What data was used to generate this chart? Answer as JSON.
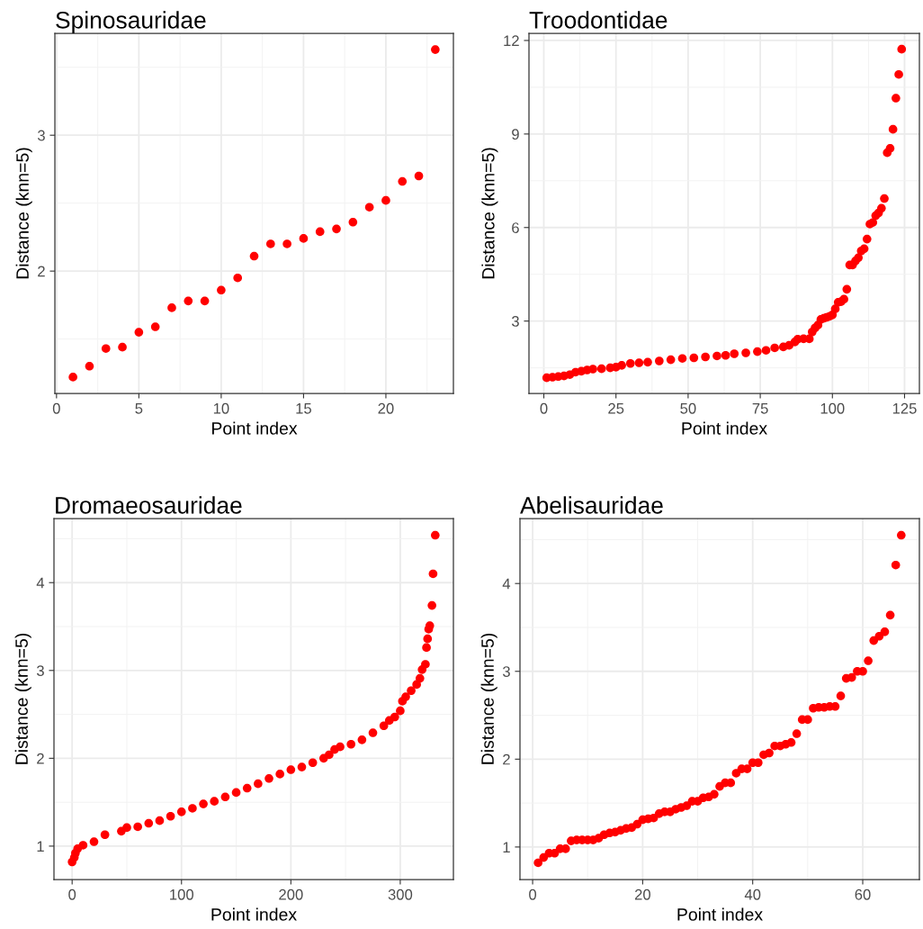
{
  "chart_data": [
    {
      "type": "scatter",
      "title": "Spinosauridae",
      "xlabel": "Point index",
      "ylabel": "Distance (knn=5)",
      "marker": "circle",
      "grid": true,
      "xlim": [
        -0.1,
        24.1
      ],
      "ylim": [
        1.1,
        3.75
      ],
      "xticks": [
        0,
        5,
        10,
        15,
        20
      ],
      "yticks": [
        2,
        3
      ],
      "x": [
        1,
        2,
        3,
        4,
        5,
        6,
        7,
        8,
        9,
        10,
        11,
        12,
        13,
        14,
        15,
        16,
        17,
        18,
        19,
        20,
        21,
        22,
        23
      ],
      "series": [
        {
          "color": "#ff0000",
          "values": [
            1.22,
            1.3,
            1.43,
            1.44,
            1.55,
            1.59,
            1.73,
            1.78,
            1.78,
            1.86,
            1.95,
            2.11,
            2.2,
            2.2,
            2.24,
            2.29,
            2.31,
            2.36,
            2.47,
            2.52,
            2.66,
            2.7,
            3.63
          ]
        }
      ]
    },
    {
      "type": "scatter",
      "title": "Troodontidae",
      "xlabel": "Point index",
      "ylabel": "Distance (knn=5)",
      "marker": "circle",
      "grid": true,
      "xlim": [
        -5.15,
        130.15
      ],
      "ylim": [
        0.68,
        12.23
      ],
      "xticks": [
        0,
        25,
        50,
        75,
        100,
        125
      ],
      "yticks": [
        3,
        6,
        9,
        12
      ],
      "x": [
        1,
        3,
        5,
        7,
        9,
        11,
        13,
        15,
        17,
        20,
        23,
        25,
        27,
        30,
        33,
        36,
        40,
        44,
        48,
        52,
        56,
        60,
        63,
        66,
        70,
        74,
        77,
        80,
        83,
        85,
        87,
        88,
        90,
        92,
        93,
        94,
        95,
        96,
        97,
        98,
        99,
        100,
        101,
        102,
        103,
        104,
        105,
        106,
        107,
        108,
        109,
        110,
        111,
        112,
        113,
        114,
        115,
        116,
        117,
        118,
        119,
        120,
        121,
        122,
        123,
        124
      ],
      "series": [
        {
          "color": "#ff0000",
          "values": [
            1.18,
            1.2,
            1.22,
            1.24,
            1.28,
            1.36,
            1.39,
            1.43,
            1.46,
            1.47,
            1.5,
            1.52,
            1.58,
            1.64,
            1.66,
            1.68,
            1.72,
            1.76,
            1.8,
            1.82,
            1.85,
            1.88,
            1.9,
            1.95,
            1.98,
            2.02,
            2.06,
            2.14,
            2.17,
            2.22,
            2.33,
            2.42,
            2.43,
            2.43,
            2.65,
            2.78,
            2.87,
            3.05,
            3.09,
            3.12,
            3.15,
            3.2,
            3.39,
            3.6,
            3.62,
            3.7,
            4.02,
            4.8,
            4.8,
            4.93,
            5.03,
            5.25,
            5.32,
            5.63,
            6.11,
            6.16,
            6.38,
            6.47,
            6.62,
            6.93,
            8.4,
            8.54,
            9.15,
            10.15,
            10.91,
            11.72
          ]
        }
      ]
    },
    {
      "type": "scatter",
      "title": "Dromaeosauridae",
      "xlabel": "Point index",
      "ylabel": "Distance (knn=5)",
      "marker": "circle",
      "grid": true,
      "xlim": [
        -16.6,
        348.6
      ],
      "ylim": [
        0.62,
        4.73
      ],
      "xticks": [
        0,
        100,
        200,
        300
      ],
      "yticks": [
        1,
        2,
        3,
        4
      ],
      "x": [
        0,
        2,
        3,
        5,
        10,
        20,
        30,
        45,
        50,
        60,
        70,
        80,
        90,
        100,
        110,
        120,
        130,
        140,
        150,
        160,
        170,
        180,
        190,
        200,
        210,
        220,
        230,
        235,
        240,
        245,
        255,
        265,
        275,
        285,
        290,
        295,
        300,
        302,
        305,
        310,
        315,
        318,
        320,
        323,
        324,
        325,
        326,
        327,
        329,
        330,
        332
      ],
      "series": [
        {
          "color": "#ff0000",
          "values": [
            0.82,
            0.87,
            0.92,
            0.97,
            1.01,
            1.05,
            1.13,
            1.17,
            1.21,
            1.22,
            1.26,
            1.29,
            1.34,
            1.39,
            1.43,
            1.48,
            1.51,
            1.56,
            1.61,
            1.66,
            1.71,
            1.77,
            1.82,
            1.87,
            1.9,
            1.95,
            2.0,
            2.04,
            2.1,
            2.13,
            2.16,
            2.21,
            2.29,
            2.37,
            2.43,
            2.47,
            2.54,
            2.65,
            2.7,
            2.77,
            2.84,
            2.91,
            3.01,
            3.07,
            3.26,
            3.36,
            3.47,
            3.51,
            3.74,
            4.1,
            4.54
          ]
        }
      ]
    },
    {
      "type": "scatter",
      "title": "Abelisauridae",
      "xlabel": "Point index",
      "ylabel": "Distance (knn=5)",
      "marker": "circle",
      "grid": true,
      "xlim": [
        -2.3,
        70.3
      ],
      "ylim": [
        0.63,
        4.74
      ],
      "xticks": [
        0,
        20,
        40,
        60
      ],
      "yticks": [
        1,
        2,
        3,
        4
      ],
      "x": [
        1,
        2,
        3,
        4,
        5,
        6,
        7,
        8,
        9,
        10,
        11,
        12,
        13,
        14,
        15,
        16,
        17,
        18,
        19,
        20,
        21,
        22,
        23,
        24,
        25,
        26,
        27,
        28,
        29,
        30,
        31,
        32,
        33,
        34,
        35,
        36,
        37,
        38,
        39,
        40,
        41,
        42,
        43,
        44,
        45,
        46,
        47,
        48,
        49,
        50,
        51,
        52,
        53,
        54,
        55,
        56,
        57,
        58,
        59,
        60,
        61,
        62,
        63,
        64,
        65,
        66,
        67
      ],
      "series": [
        {
          "color": "#ff0000",
          "values": [
            0.82,
            0.88,
            0.93,
            0.93,
            0.98,
            0.98,
            1.07,
            1.08,
            1.08,
            1.08,
            1.08,
            1.1,
            1.14,
            1.16,
            1.17,
            1.19,
            1.21,
            1.22,
            1.26,
            1.31,
            1.32,
            1.33,
            1.38,
            1.4,
            1.4,
            1.43,
            1.45,
            1.47,
            1.52,
            1.52,
            1.56,
            1.57,
            1.6,
            1.69,
            1.73,
            1.73,
            1.84,
            1.89,
            1.89,
            1.96,
            1.96,
            2.05,
            2.07,
            2.15,
            2.15,
            2.17,
            2.19,
            2.29,
            2.45,
            2.45,
            2.58,
            2.59,
            2.59,
            2.6,
            2.6,
            2.72,
            2.92,
            2.93,
            3.0,
            3.0,
            3.12,
            3.35,
            3.4,
            3.45,
            3.64,
            4.21,
            4.55
          ]
        }
      ]
    }
  ]
}
